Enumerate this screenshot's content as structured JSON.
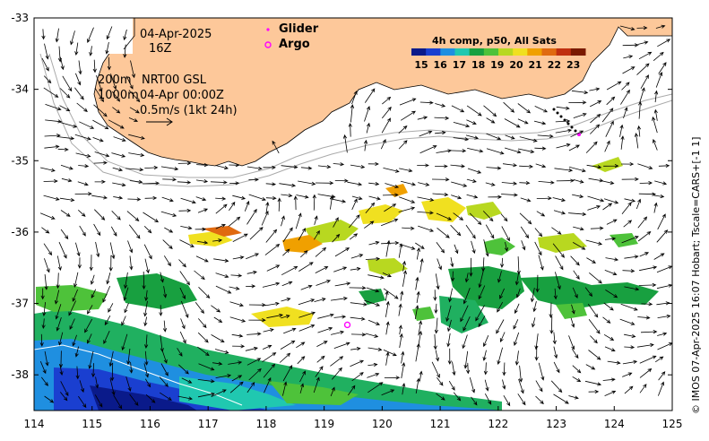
{
  "header": {
    "date": "04-Apr-2025",
    "time": "16Z",
    "depth_label_200": "200m",
    "depth_label_1000": "1000m",
    "product": "NRT00 GSL",
    "valid_time": "04-Apr 00:00Z",
    "scale_label": "0.5m/s (1kt 24h)"
  },
  "legend": {
    "glider": "Glider",
    "argo": "Argo",
    "glider_color": "#ff00ff",
    "argo_color": "#ff00ff"
  },
  "colorbar": {
    "title": "4h comp, p50, All Sats",
    "ticks": [
      "15",
      "16",
      "17",
      "18",
      "19",
      "20",
      "21",
      "22",
      "23"
    ],
    "colors": [
      "#0a1a8a",
      "#1a3fd0",
      "#1f8fe0",
      "#20c8b0",
      "#18a040",
      "#4ec23a",
      "#b8d820",
      "#f0e020",
      "#f0a000",
      "#e06a10",
      "#c03010",
      "#7a1a00"
    ]
  },
  "axes": {
    "x_ticks": [
      "114",
      "115",
      "116",
      "117",
      "118",
      "119",
      "120",
      "121",
      "122",
      "123",
      "124",
      "125"
    ],
    "y_ticks": [
      "-33",
      "-34",
      "-35",
      "-36",
      "-37",
      "-38"
    ],
    "x_range": [
      114,
      125
    ],
    "y_range": [
      -38.5,
      -33
    ]
  },
  "credit": "© IMOS 07-Apr-2025 16:07 Hobart; Tscale=CARS+[-1 1]",
  "colors": {
    "land": "#fdc89a",
    "coast": "#000000",
    "isobath": "#aaaaaa",
    "arrow": "#000000"
  },
  "argo_float": {
    "lon": 119.4,
    "lat": -37.3
  }
}
